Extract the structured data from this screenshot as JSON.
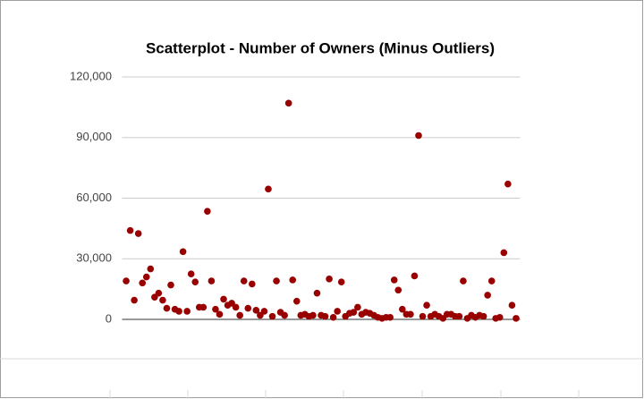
{
  "chart_data": {
    "type": "scatter",
    "title": "Scatterplot - Number of Owners (Minus Outliers)",
    "color": "#990000",
    "grid": true,
    "xlim": [
      0,
      98
    ],
    "ylim": [
      0,
      120000
    ],
    "yticks": [
      {
        "value": 0,
        "label": "0"
      },
      {
        "value": 30000,
        "label": "30,000"
      },
      {
        "value": 60000,
        "label": "60,000"
      },
      {
        "value": 90000,
        "label": "90,000"
      },
      {
        "value": 120000,
        "label": "120,000"
      }
    ],
    "x": [
      1,
      2,
      3,
      4,
      5,
      6,
      7,
      8,
      9,
      10,
      11,
      12,
      13,
      14,
      15,
      16,
      17,
      18,
      19,
      20,
      21,
      22,
      23,
      24,
      25,
      26,
      27,
      28,
      29,
      30,
      31,
      32,
      33,
      34,
      35,
      36,
      37,
      38,
      39,
      40,
      41,
      42,
      43,
      44,
      45,
      46,
      47,
      48,
      49,
      50,
      51,
      52,
      53,
      54,
      55,
      56,
      57,
      58,
      59,
      60,
      61,
      62,
      63,
      64,
      65,
      66,
      67,
      68,
      69,
      70,
      71,
      72,
      73,
      74,
      75,
      76,
      77,
      78,
      79,
      80,
      81,
      82,
      83,
      84,
      85,
      86,
      87,
      88,
      89,
      90,
      91,
      92,
      93,
      94,
      95,
      96,
      97
    ],
    "values": [
      19000,
      44000,
      9500,
      42500,
      18000,
      21000,
      25000,
      11000,
      13000,
      9500,
      5500,
      17000,
      5000,
      4000,
      33500,
      4000,
      22500,
      18500,
      6000,
      6000,
      53500,
      19000,
      5000,
      2500,
      10000,
      7000,
      8000,
      6000,
      2000,
      19000,
      5500,
      17500,
      4500,
      2000,
      4000,
      64500,
      1500,
      19000,
      3500,
      2000,
      107000,
      19500,
      9000,
      2000,
      2500,
      1500,
      2000,
      13000,
      2000,
      1500,
      20000,
      1000,
      4000,
      18500,
      1500,
      3000,
      3500,
      6000,
      2500,
      3500,
      3000,
      2000,
      1000,
      500,
      1000,
      1000,
      19500,
      14500,
      5000,
      2500,
      2500,
      21500,
      91000,
      1500,
      7000,
      1500,
      2500,
      1500,
      500,
      2500,
      2500,
      1500,
      1500,
      19000,
      500,
      2000,
      1000,
      2000,
      1500,
      12000,
      19000,
      500,
      1000,
      33000,
      67000,
      7000,
      500
    ]
  }
}
